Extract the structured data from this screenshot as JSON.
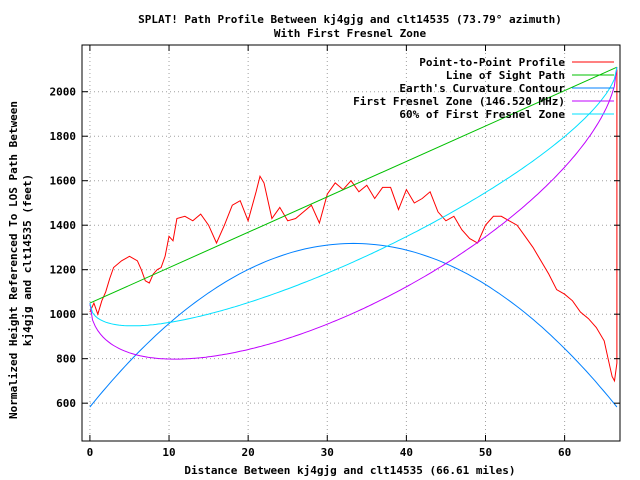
{
  "chart_data": {
    "type": "line",
    "title_line1": "SPLAT! Path Profile Between kj4gjg and clt14535 (73.79° azimuth)",
    "title_line2": "With First Fresnel Zone",
    "xlabel": "Distance Between kj4gjg and clt14535 (66.61 miles)",
    "ylabel_line1": "Normalized Height Referenced To LOS Path Between",
    "ylabel_line2": "kj4gjg and clt14535 (feet)",
    "xlim": [
      -1,
      67
    ],
    "ylim": [
      430,
      2210
    ],
    "xticks": [
      0,
      10,
      20,
      30,
      40,
      50,
      60
    ],
    "yticks": [
      600,
      800,
      1000,
      1200,
      1400,
      1600,
      1800,
      2000
    ],
    "grid": true,
    "legend_position": "top-right",
    "series": [
      {
        "name": "Point-to-Point Profile",
        "color": "#ff0000",
        "x": [
          0,
          0.5,
          1,
          1.5,
          2,
          2.5,
          3,
          4,
          5,
          6,
          6.5,
          7,
          7.5,
          8,
          8.5,
          9,
          9.5,
          10,
          10.5,
          11,
          12,
          13,
          14,
          15,
          16,
          17,
          18,
          19,
          20,
          21,
          21.5,
          22,
          23,
          24,
          25,
          26,
          27,
          28,
          29,
          30,
          31,
          32,
          33,
          34,
          35,
          36,
          37,
          38,
          39,
          40,
          41,
          42,
          43,
          44,
          45,
          46,
          47,
          48,
          49,
          50,
          51,
          52,
          53,
          54,
          55,
          56,
          57,
          58,
          59,
          60,
          61,
          62,
          63,
          64,
          65,
          65.5,
          66,
          66.3,
          66.61,
          66.61
        ],
        "y": [
          1010,
          1050,
          1000,
          1060,
          1100,
          1160,
          1210,
          1240,
          1260,
          1240,
          1200,
          1150,
          1140,
          1180,
          1200,
          1210,
          1260,
          1350,
          1330,
          1430,
          1440,
          1420,
          1450,
          1400,
          1320,
          1400,
          1490,
          1510,
          1420,
          1550,
          1620,
          1590,
          1430,
          1480,
          1420,
          1430,
          1460,
          1490,
          1410,
          1540,
          1590,
          1560,
          1600,
          1550,
          1580,
          1520,
          1570,
          1570,
          1470,
          1560,
          1500,
          1520,
          1550,
          1460,
          1420,
          1440,
          1380,
          1340,
          1320,
          1400,
          1440,
          1440,
          1420,
          1400,
          1350,
          1300,
          1240,
          1180,
          1110,
          1090,
          1060,
          1010,
          980,
          940,
          880,
          800,
          720,
          700,
          780,
          2100
        ]
      },
      {
        "name": "Line of Sight Path",
        "color": "#00c000",
        "x": [
          0,
          66.61
        ],
        "y": [
          1050,
          2110
        ]
      },
      {
        "name": "Earth's Curvature Contour",
        "color": "#0080ff",
        "type": "curvature",
        "max": 1318,
        "min": 583
      },
      {
        "name": "First Fresnel Zone (146.520 MHz)",
        "color": "#c000ff",
        "type": "fresnel",
        "radius": 575
      },
      {
        "name": "60% of First Fresnel Zone",
        "color": "#00e0ff",
        "type": "fresnel",
        "radius": 345
      }
    ]
  }
}
